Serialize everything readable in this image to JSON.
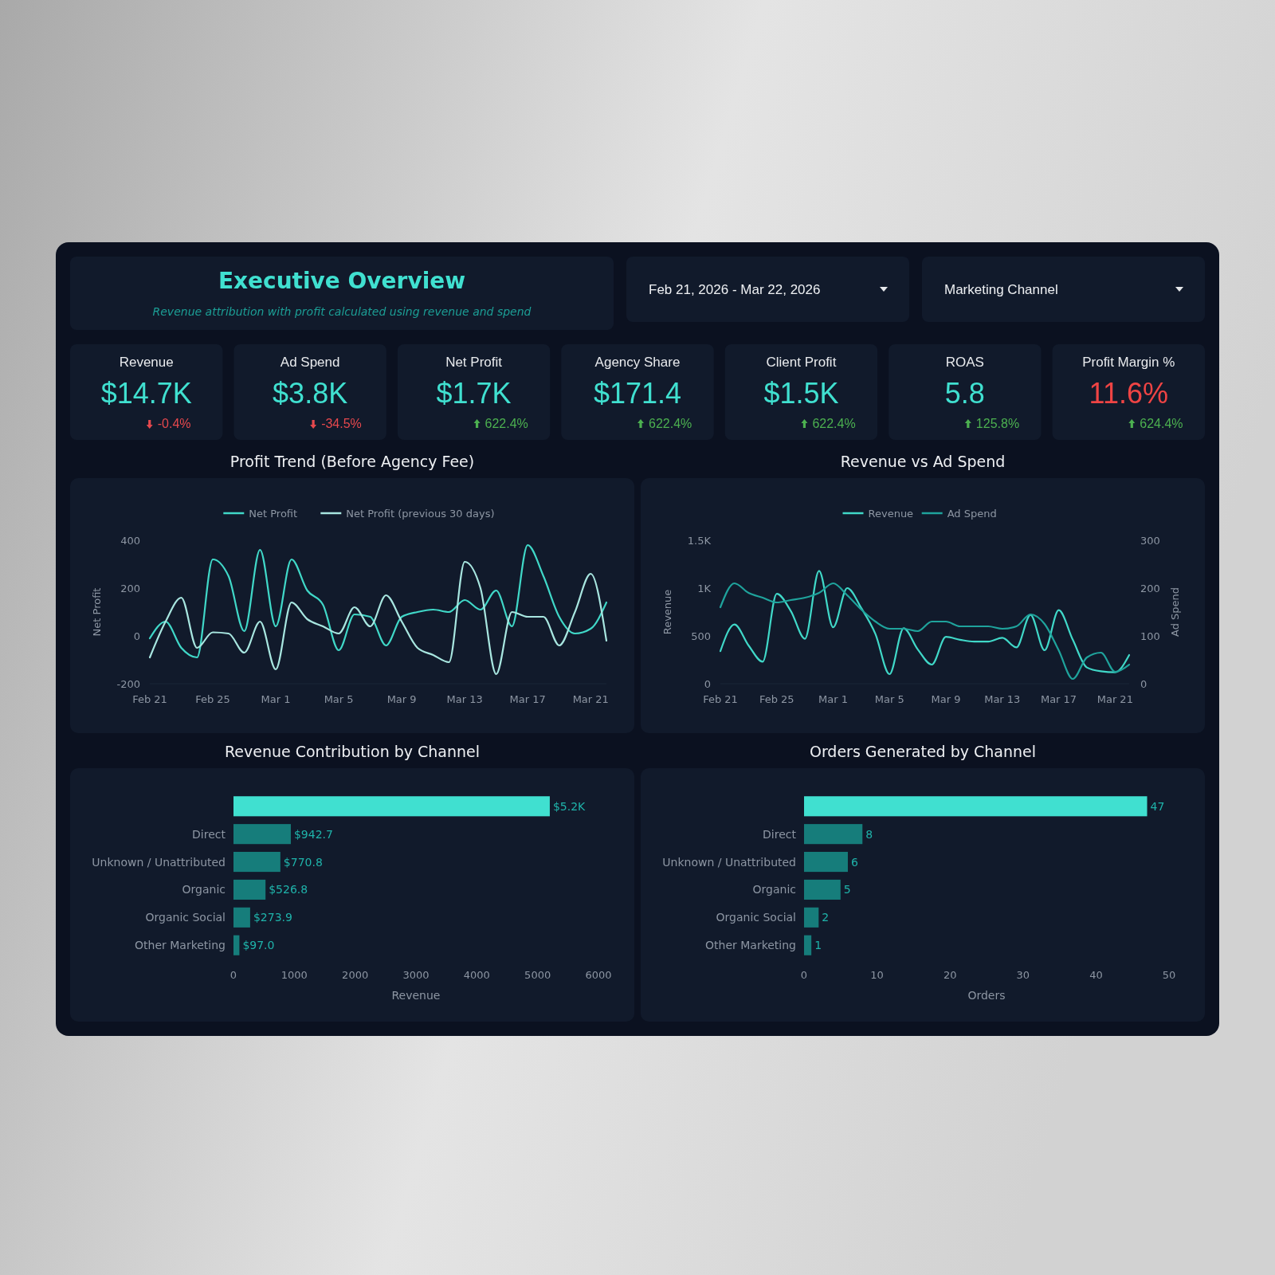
{
  "chart_data": [
    {
      "type": "other",
      "title": "Executive Overview",
      "subtitle": "Revenue attribution with profit calculated using revenue and spend",
      "annotations": [
        "Feb 21, 2026 - Mar 22, 2026",
        "Marketing Channel"
      ]
    },
    {
      "type": "other",
      "categories": [
        "Revenue",
        "Ad Spend",
        "Net Profit",
        "Agency Share",
        "Client Profit",
        "ROAS",
        "Profit Margin %"
      ],
      "annotations": [
        "$14.7K",
        "$3.8K",
        "$1.7K",
        "$171.4",
        "$1.5K",
        "5.8",
        "11.6%"
      ],
      "colors": [
        "#40e0d0",
        "#40e0d0",
        "#40e0d0",
        "#40e0d0",
        "#40e0d0",
        "#40e0d0",
        "#ef4444"
      ],
      "series": [
        {
          "values": [
            -0.4,
            -34.5,
            622.4,
            622.4,
            622.4,
            125.8,
            624.4
          ],
          "value_labels": [
            "-0.4%",
            "-34.5%",
            "622.4%",
            "622.4%",
            "622.4%",
            "125.8%",
            "624.4%"
          ]
        }
      ]
    },
    {
      "type": "line",
      "title": "Profit Trend (Before Agency Fee)",
      "ylabel": "Net Profit",
      "x": [
        "2026-02-21",
        "2026-02-22",
        "2026-02-23",
        "2026-02-24",
        "2026-02-25",
        "2026-02-26",
        "2026-02-27",
        "2026-02-28",
        "2026-03-01",
        "2026-03-02",
        "2026-03-03",
        "2026-03-04",
        "2026-03-05",
        "2026-03-06",
        "2026-03-07",
        "2026-03-08",
        "2026-03-09",
        "2026-03-10",
        "2026-03-11",
        "2026-03-12",
        "2026-03-13",
        "2026-03-14",
        "2026-03-15",
        "2026-03-16",
        "2026-03-17",
        "2026-03-18",
        "2026-03-19",
        "2026-03-20",
        "2026-03-21",
        "2026-03-22"
      ],
      "series": [
        {
          "name": "Net Profit",
          "color": "#40d8c8",
          "values": [
            -10,
            60,
            -50,
            -90,
            320,
            250,
            20,
            360,
            40,
            320,
            190,
            130,
            -60,
            90,
            80,
            -40,
            80,
            100,
            110,
            100,
            150,
            110,
            190,
            40,
            380,
            250,
            80,
            10,
            30,
            140
          ]
        },
        {
          "name": "Net Profit (previous 30 days)",
          "color": "#a8e6e0",
          "values": [
            -90,
            60,
            160,
            -50,
            15,
            10,
            -70,
            60,
            -140,
            140,
            70,
            40,
            10,
            120,
            40,
            170,
            60,
            -50,
            -80,
            -110,
            310,
            200,
            -160,
            100,
            80,
            80,
            -40,
            100,
            260,
            -20
          ]
        }
      ],
      "xlim": [
        "2026-02-21",
        "2026-03-22"
      ],
      "xticks": [
        {
          "value": "2026-02-21",
          "label": "Feb 21"
        },
        {
          "value": "2026-02-25",
          "label": "Feb 25"
        },
        {
          "value": "2026-03-01",
          "label": "Mar 1"
        },
        {
          "value": "2026-03-05",
          "label": "Mar 5"
        },
        {
          "value": "2026-03-09",
          "label": "Mar 9"
        },
        {
          "value": "2026-03-13",
          "label": "Mar 13"
        },
        {
          "value": "2026-03-17",
          "label": "Mar 17"
        },
        {
          "value": "2026-03-21",
          "label": "Mar 21"
        }
      ],
      "ylim": [
        -200,
        400
      ],
      "yticks": [
        -200,
        0,
        200,
        400
      ],
      "legend": "top"
    },
    {
      "type": "line",
      "title": "Revenue vs Ad Spend",
      "ylabel": "Revenue",
      "y2label": "Ad Spend",
      "x": [
        "2026-02-21",
        "2026-02-22",
        "2026-02-23",
        "2026-02-24",
        "2026-02-25",
        "2026-02-26",
        "2026-02-27",
        "2026-02-28",
        "2026-03-01",
        "2026-03-02",
        "2026-03-03",
        "2026-03-04",
        "2026-03-05",
        "2026-03-06",
        "2026-03-07",
        "2026-03-08",
        "2026-03-09",
        "2026-03-10",
        "2026-03-11",
        "2026-03-12",
        "2026-03-13",
        "2026-03-14",
        "2026-03-15",
        "2026-03-16",
        "2026-03-17",
        "2026-03-18",
        "2026-03-19",
        "2026-03-20",
        "2026-03-21",
        "2026-03-22"
      ],
      "series": [
        {
          "name": "Revenue",
          "color": "#40d8c8",
          "values": [
            340,
            620,
            400,
            230,
            940,
            760,
            470,
            1180,
            590,
            1000,
            790,
            520,
            100,
            580,
            360,
            200,
            490,
            460,
            440,
            440,
            480,
            380,
            720,
            350,
            770,
            460,
            170,
            130,
            120,
            300
          ]
        },
        {
          "name": "Ad Spend",
          "color": "#1fa39c",
          "axis": "y2",
          "values": [
            160,
            210,
            190,
            180,
            170,
            175,
            180,
            190,
            210,
            185,
            155,
            130,
            115,
            115,
            110,
            130,
            130,
            120,
            120,
            120,
            115,
            120,
            145,
            125,
            70,
            10,
            55,
            65,
            25,
            40
          ]
        }
      ],
      "xlim": [
        "2026-02-21",
        "2026-03-22"
      ],
      "xticks": [
        {
          "value": "2026-02-21",
          "label": "Feb 21"
        },
        {
          "value": "2026-02-25",
          "label": "Feb 25"
        },
        {
          "value": "2026-03-01",
          "label": "Mar 1"
        },
        {
          "value": "2026-03-05",
          "label": "Mar 5"
        },
        {
          "value": "2026-03-09",
          "label": "Mar 9"
        },
        {
          "value": "2026-03-13",
          "label": "Mar 13"
        },
        {
          "value": "2026-03-17",
          "label": "Mar 17"
        },
        {
          "value": "2026-03-21",
          "label": "Mar 21"
        }
      ],
      "ylim": [
        0,
        1500
      ],
      "yticks": [
        0,
        500,
        {
          "value": 1000,
          "label": "1K"
        },
        {
          "value": 1500,
          "label": "1.5K"
        }
      ],
      "y2lim": [
        0,
        300
      ],
      "y2ticks": [
        0,
        100,
        200,
        300
      ],
      "legend": "top"
    },
    {
      "type": "bar",
      "orientation": "horizontal",
      "title": "Revenue Contribution by Channel",
      "categories": [
        null,
        "Direct",
        "Unknown / Unattributed",
        "Organic",
        "Organic Social",
        "Other Marketing"
      ],
      "values": [
        5200,
        942.7,
        770.8,
        526.8,
        273.9,
        97.0
      ],
      "value_labels": [
        "$5.2K",
        "$942.7",
        "$770.8",
        "$526.8",
        "$273.9",
        "$97.0"
      ],
      "colors": [
        "#40e0d0",
        "#167d7b",
        "#167d7b",
        "#167d7b",
        "#167d7b",
        "#167d7b"
      ],
      "xlim": [
        0,
        6000
      ],
      "xticks": [
        0,
        1000,
        2000,
        3000,
        4000,
        5000,
        6000
      ],
      "xlabel": "Revenue"
    },
    {
      "type": "bar",
      "orientation": "horizontal",
      "title": "Orders Generated by Channel",
      "categories": [
        null,
        "Direct",
        "Unknown / Unattributed",
        "Organic",
        "Organic Social",
        "Other Marketing"
      ],
      "values": [
        47,
        8,
        6,
        5,
        2,
        1
      ],
      "data_labels": true,
      "colors": [
        "#40e0d0",
        "#167d7b",
        "#167d7b",
        "#167d7b",
        "#167d7b",
        "#167d7b"
      ],
      "xlim": [
        0,
        50
      ],
      "xticks": [
        0,
        10,
        20,
        30,
        40,
        50
      ],
      "xlabel": "Orders"
    }
  ]
}
